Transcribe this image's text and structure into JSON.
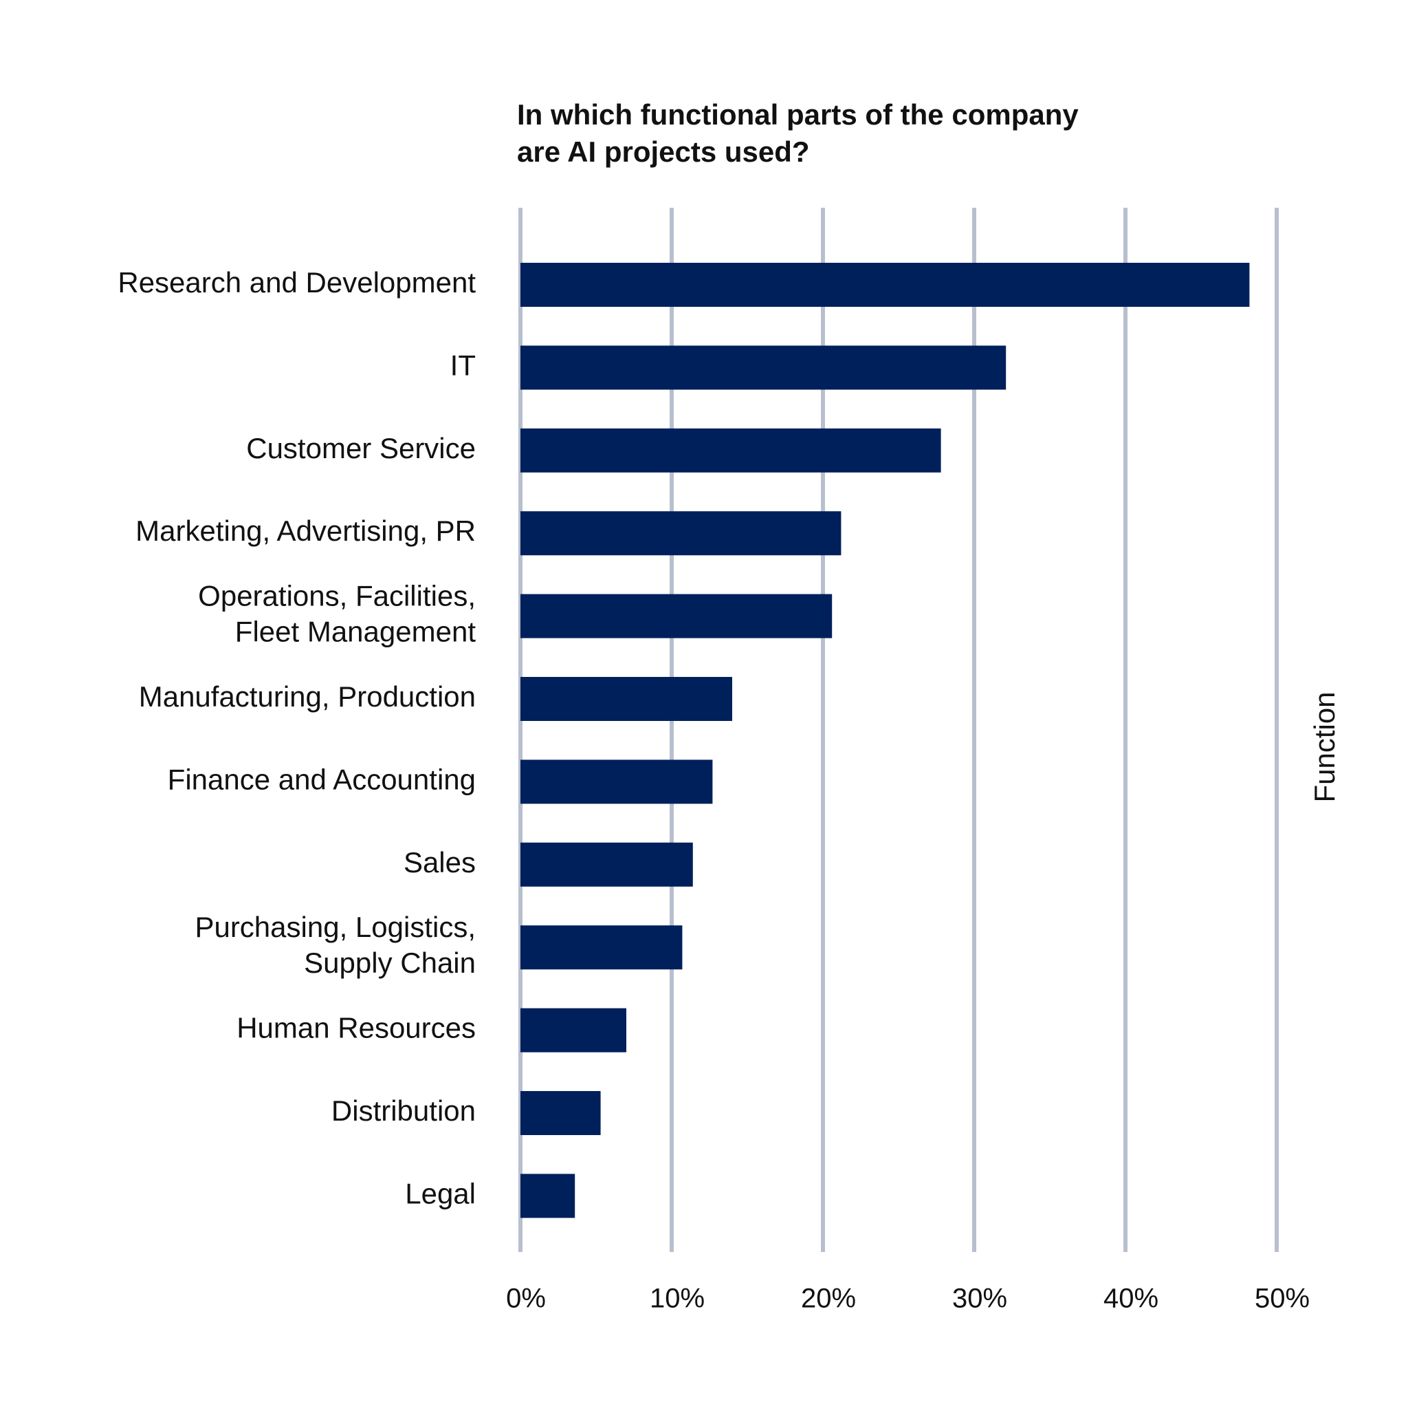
{
  "chart_data": {
    "type": "bar",
    "orientation": "horizontal",
    "title": [
      "In which functional parts of the company",
      "are AI projects used?"
    ],
    "ylabel": "Function",
    "xlabel": "",
    "categories": [
      [
        "Research and Development"
      ],
      [
        "IT"
      ],
      [
        "Customer Service"
      ],
      [
        "Marketing, Advertising, PR"
      ],
      [
        "Operations, Facilities,",
        "Fleet Management"
      ],
      [
        "Manufacturing, Production"
      ],
      [
        "Finance and Accounting"
      ],
      [
        "Sales"
      ],
      [
        "Purchasing, Logistics,",
        "Supply Chain"
      ],
      [
        "Human Resources"
      ],
      [
        "Distribution"
      ],
      [
        "Legal"
      ]
    ],
    "values": [
      48.2,
      32.1,
      27.8,
      21.2,
      20.6,
      14.0,
      12.7,
      11.4,
      10.7,
      7.0,
      5.3,
      3.6
    ],
    "xlim": [
      0,
      50
    ],
    "xticks": [
      0,
      10,
      20,
      30,
      40,
      50
    ],
    "xtick_labels": [
      "0%",
      "10%",
      "20%",
      "30%",
      "40%",
      "50%"
    ],
    "grid": true,
    "legend": "none",
    "colors": {
      "bar": "#00205b",
      "grid": "#b8bfce",
      "text": "#111111"
    }
  }
}
